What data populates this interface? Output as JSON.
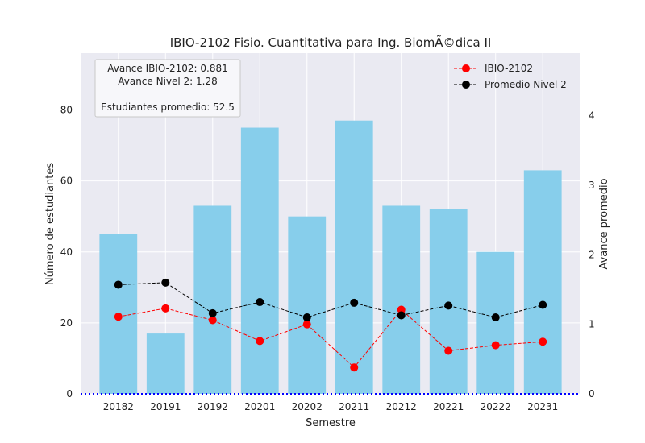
{
  "chart_data": {
    "type": "bar",
    "title": "IBIO-2102 Fisio. Cuantitativa para Ing. BiomÃ©dica II",
    "xlabel": "Semestre",
    "ylabel": "Número de estudiantes",
    "y2label": "Avance promedio",
    "categories": [
      "20182",
      "20191",
      "20192",
      "20201",
      "20202",
      "20211",
      "20212",
      "20221",
      "20222",
      "20231"
    ],
    "ylim": [
      0,
      96
    ],
    "y2lim": [
      0,
      4.9
    ],
    "yticks": [
      "0",
      "20",
      "40",
      "60",
      "80"
    ],
    "y2ticks": [
      "0",
      "1",
      "2",
      "3",
      "4"
    ],
    "grid": true,
    "bars": {
      "name": "",
      "color": "#87ceeb",
      "values": [
        45,
        17,
        53,
        75,
        50,
        77,
        53,
        52,
        40,
        63
      ]
    },
    "series": [
      {
        "name": "IBIO-2102",
        "axis": "right",
        "color": "#ff0000",
        "values": [
          1.11,
          1.23,
          1.06,
          0.76,
          1.0,
          0.38,
          1.21,
          0.62,
          0.7,
          0.75
        ]
      },
      {
        "name": "Promedio Nivel 2",
        "axis": "right",
        "color": "#000000",
        "values": [
          1.57,
          1.6,
          1.16,
          1.32,
          1.1,
          1.31,
          1.13,
          1.27,
          1.1,
          1.28
        ]
      }
    ],
    "reference_line": {
      "y": 0,
      "color": "#0000ff",
      "style": "dotted"
    },
    "legend_position": "top-right",
    "annotation": {
      "lines": [
        "Avance IBIO-2102: 0.881",
        "Avance Nivel 2: 1.28",
        "",
        "Estudiantes promedio: 52.5"
      ]
    }
  }
}
